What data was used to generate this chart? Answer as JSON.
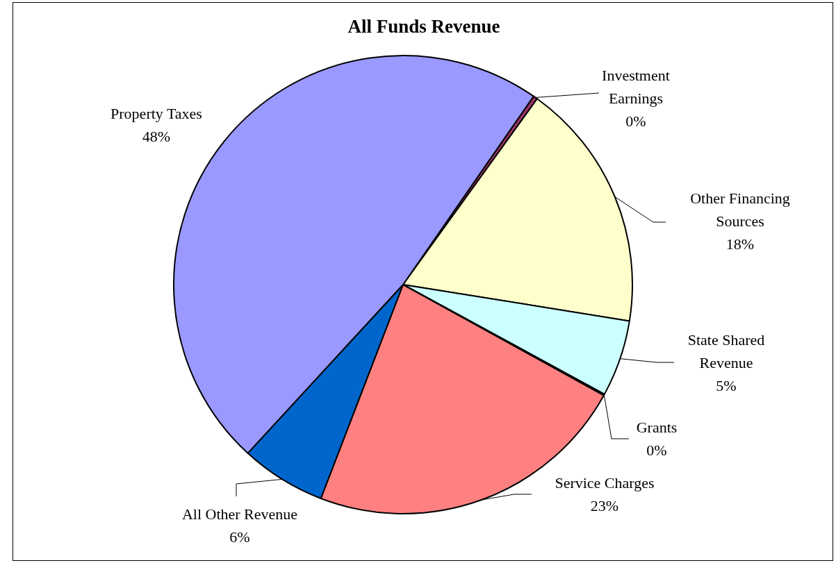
{
  "chart_data": {
    "type": "pie",
    "title": "All Funds Revenue",
    "categories": [
      "Investment Earnings",
      "Other Financing Sources",
      "State Shared Revenue",
      "Grants",
      "Service Charges",
      "All Other Revenue",
      "Property Taxes"
    ],
    "values": [
      0.3,
      17.6,
      5.4,
      0.1,
      22.8,
      6,
      47.8
    ],
    "value_labels": [
      "0%",
      "18%",
      "5%",
      "0%",
      "23%",
      "6%",
      "48%"
    ],
    "colors": [
      "#993366",
      "#ffffcc",
      "#ccffff",
      "#660066",
      "#ff8080",
      "#0066cc",
      "#9999ff"
    ]
  }
}
